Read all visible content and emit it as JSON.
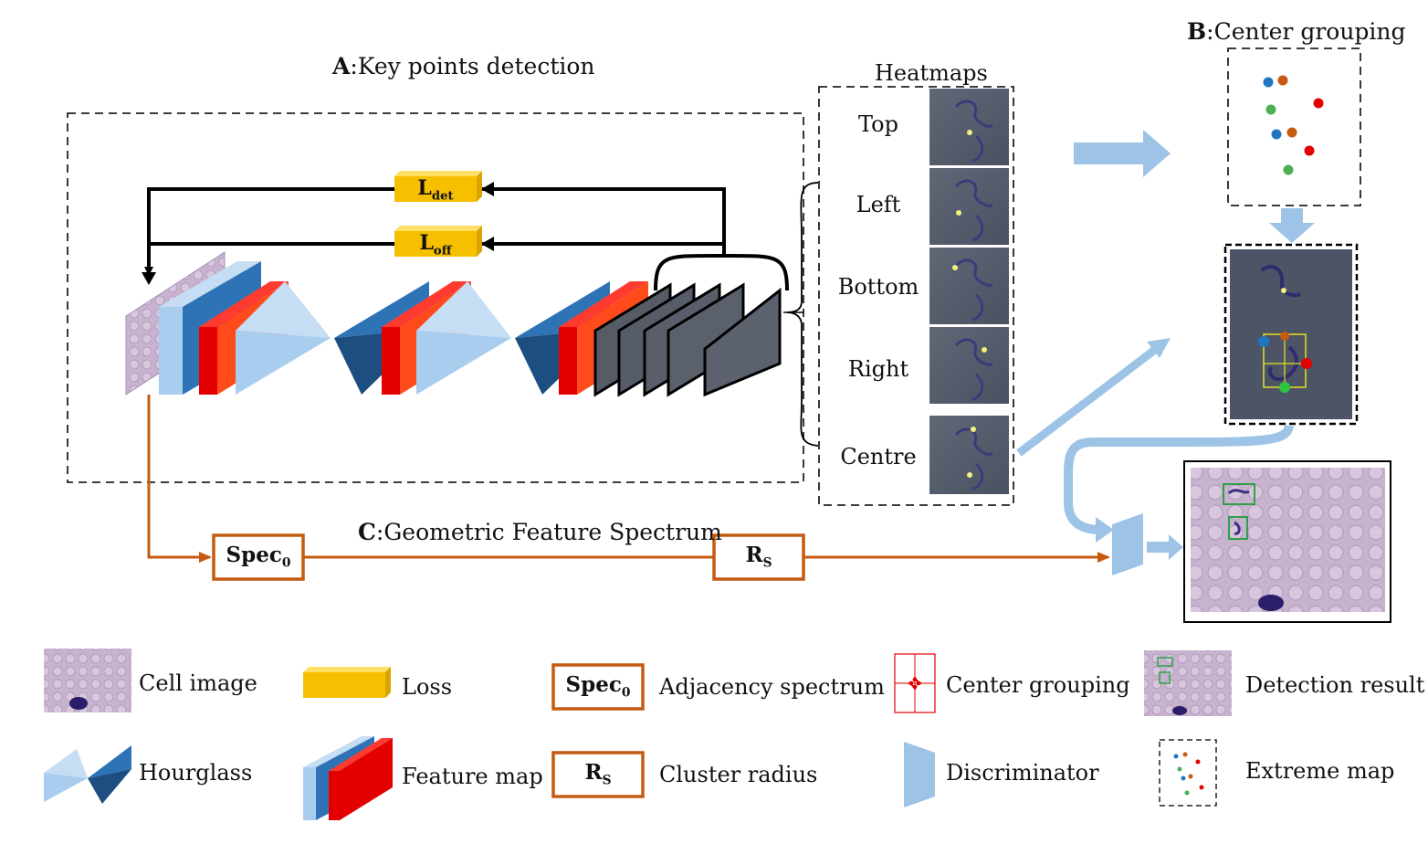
{
  "sections": {
    "a_prefix": "A",
    "a_title": ":Key points detection",
    "b_prefix": "B",
    "b_title": ":Center grouping",
    "c_prefix": "C",
    "c_title": ":Geometric Feature Spectrum"
  },
  "heatmaps": {
    "title": "Heatmaps",
    "labels": [
      "Top",
      "Left",
      "Bottom",
      "Right",
      "Centre"
    ]
  },
  "losses": {
    "det_main": "L",
    "det_sub": "det",
    "off_main": "L",
    "off_sub": "off"
  },
  "spectrum": {
    "spec_main": "Spec",
    "spec_sub": "0",
    "rs_main": "R",
    "rs_sub": "S"
  },
  "legend": {
    "cell_image": "Cell image",
    "loss": "Loss",
    "adjacency_spectrum": "Adjacency spectrum",
    "center_grouping": "Center grouping",
    "detection_result": "Detection result",
    "hourglass": "Hourglass",
    "feature_map": "Feature map",
    "cluster_radius": "Cluster radius",
    "discriminator": "Discriminator",
    "extreme_map": "Extreme map"
  },
  "colors": {
    "loss_yellow": "#f6c000",
    "feature_red": "#e40000",
    "feature_blue_dark": "#2f73b7",
    "feature_blue_light": "#a9cdee",
    "arrow_blue": "#9dc3e6",
    "spectrum_orange": "#c55a11",
    "cell_bg": "#b7a4c4"
  },
  "extreme_points": [
    {
      "color": "#1f77c4"
    },
    {
      "color": "#c55a11"
    },
    {
      "color": "#e40000"
    },
    {
      "color": "#4caf50"
    },
    {
      "color": "#1f77c4"
    },
    {
      "color": "#c55a11"
    },
    {
      "color": "#e40000"
    },
    {
      "color": "#4caf50"
    }
  ]
}
